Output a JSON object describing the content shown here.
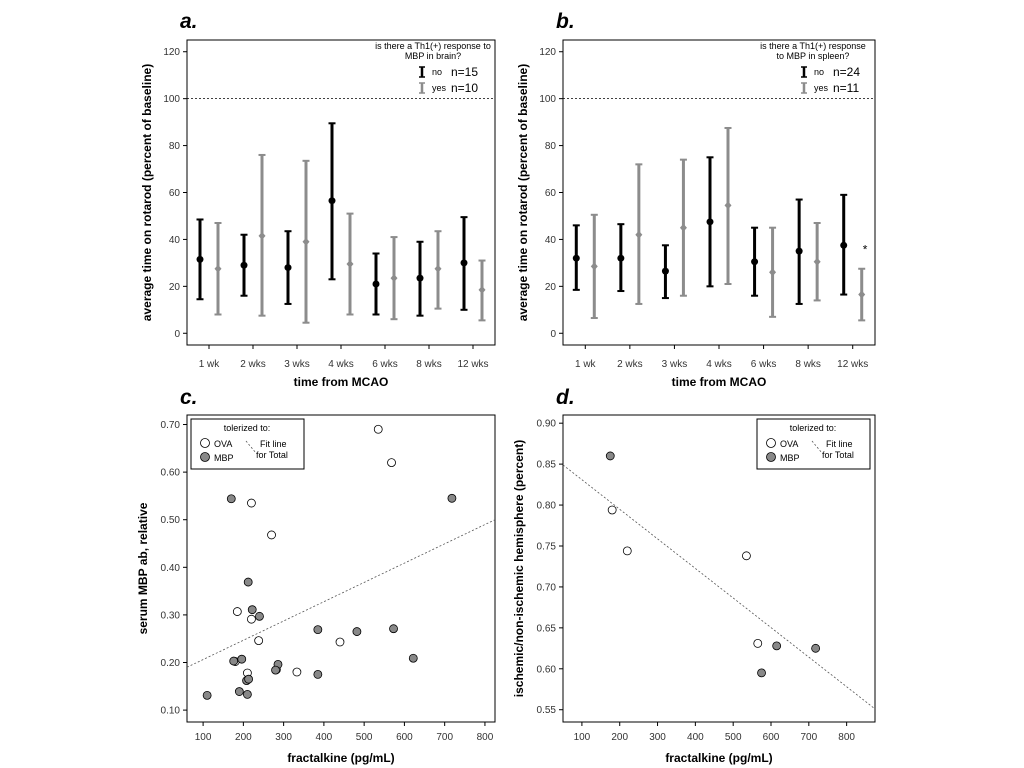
{
  "chart_data": [
    {
      "panel": "a.",
      "type": "errorbar",
      "categories": [
        "1 wk",
        "2 wks",
        "3 wks",
        "4 wks",
        "6 wks",
        "8 wks",
        "12 wks"
      ],
      "xlabel": "time from MCAO",
      "ylabel": "average time on rotarod (percent of baseline)",
      "ylim": [
        -5,
        125
      ],
      "yticks": [
        0,
        20,
        40,
        60,
        80,
        100,
        120
      ],
      "reference_line": 100,
      "legend": {
        "title": "is there a Th1(+) response to MBP in brain?",
        "position": "top-right"
      },
      "series": [
        {
          "name": "no",
          "n_label": "n=15",
          "color": "#000000",
          "mean": [
            31.5,
            29,
            28,
            56.5,
            21,
            23.5,
            30
          ],
          "low": [
            14.5,
            16,
            12.5,
            23,
            8,
            7.5,
            10
          ],
          "high": [
            48.5,
            42,
            43.5,
            89.5,
            34,
            39,
            49.5
          ]
        },
        {
          "name": "yes",
          "n_label": "n=10",
          "color": "#8c8c8c",
          "mean": [
            27.5,
            41.5,
            39,
            29.5,
            23.5,
            27.5,
            18.5
          ],
          "low": [
            8,
            7.5,
            4.5,
            8,
            6,
            10.5,
            5.5
          ],
          "high": [
            47,
            76,
            73.5,
            51,
            41,
            43.5,
            31
          ]
        }
      ]
    },
    {
      "panel": "b.",
      "type": "errorbar",
      "categories": [
        "1 wk",
        "2 wks",
        "3 wks",
        "4 wks",
        "6 wks",
        "8 wks",
        "12 wks"
      ],
      "xlabel": "time from MCAO",
      "ylabel": "average time on rotarod (percent of baseline)",
      "ylim": [
        -5,
        125
      ],
      "yticks": [
        0,
        20,
        40,
        60,
        80,
        100,
        120
      ],
      "reference_line": 100,
      "annotation": "*",
      "legend": {
        "title": "is there a Th1(+) response to MBP in spleen?",
        "position": "top-right"
      },
      "series": [
        {
          "name": "no",
          "n_label": "n=24",
          "color": "#000000",
          "mean": [
            32,
            32,
            26.5,
            47.5,
            30.5,
            35,
            37.5
          ],
          "low": [
            18.5,
            18,
            15,
            20,
            16,
            12.5,
            16.5
          ],
          "high": [
            46,
            46.5,
            37.5,
            75,
            45,
            57,
            59
          ]
        },
        {
          "name": "yes",
          "n_label": "n=11",
          "color": "#8c8c8c",
          "mean": [
            28.5,
            42,
            45,
            54.5,
            26,
            30.5,
            16.5
          ],
          "low": [
            6.5,
            12.5,
            16,
            21,
            7,
            14,
            5.5
          ],
          "high": [
            50.5,
            72,
            74,
            87.5,
            45,
            47,
            27.5
          ]
        }
      ]
    },
    {
      "panel": "c.",
      "type": "scatter",
      "xlabel": "fractalkine (pg/mL)",
      "ylabel": "serum MBP ab, relative",
      "xlim": [
        60,
        825
      ],
      "ylim": [
        0.075,
        0.72
      ],
      "xticks": [
        100,
        200,
        300,
        400,
        500,
        600,
        700,
        800
      ],
      "yticks": [
        "0.10",
        "0.20",
        "0.30",
        "0.40",
        "0.50",
        "0.60",
        "0.70"
      ],
      "legend": {
        "title": "tolerized to:",
        "entries": [
          "OVA",
          "MBP"
        ],
        "fitline_label": [
          "Fit line",
          "for Total"
        ],
        "position": "top-left"
      },
      "fit_line": {
        "x": [
          60,
          825
        ],
        "y": [
          0.19,
          0.5
        ]
      },
      "series": [
        {
          "name": "OVA",
          "fill": "#ffffff",
          "points": [
            [
              535,
              0.69
            ],
            [
              568,
              0.62
            ],
            [
              220,
              0.535
            ],
            [
              270,
              0.468
            ],
            [
              185,
              0.307
            ],
            [
              220,
              0.291
            ],
            [
              238,
              0.246
            ],
            [
              440,
              0.243
            ],
            [
              282,
              0.185
            ],
            [
              333,
              0.18
            ],
            [
              210,
              0.178
            ],
            [
              180,
              0.202
            ]
          ]
        },
        {
          "name": "MBP",
          "fill": "#888888",
          "points": [
            [
              170,
              0.544
            ],
            [
              718,
              0.545
            ],
            [
              212,
              0.369
            ],
            [
              222,
              0.311
            ],
            [
              240,
              0.297
            ],
            [
              385,
              0.269
            ],
            [
              482,
              0.265
            ],
            [
              573,
              0.271
            ],
            [
              622,
              0.209
            ],
            [
              196,
              0.207
            ],
            [
              176,
              0.203
            ],
            [
              286,
              0.196
            ],
            [
              280,
              0.184
            ],
            [
              385,
              0.175
            ],
            [
              208,
              0.162
            ],
            [
              213,
              0.165
            ],
            [
              190,
              0.139
            ],
            [
              210,
              0.133
            ],
            [
              110,
              0.131
            ]
          ]
        }
      ]
    },
    {
      "panel": "d.",
      "type": "scatter",
      "xlabel": "fractalkine (pg/mL)",
      "ylabel": "ischemic/non-ischemic hemisphere (percent)",
      "xlim": [
        50,
        875
      ],
      "ylim": [
        0.535,
        0.91
      ],
      "xticks": [
        100,
        200,
        300,
        400,
        500,
        600,
        700,
        800
      ],
      "yticks": [
        "0.55",
        "0.60",
        "0.65",
        "0.70",
        "0.75",
        "0.80",
        "0.85",
        "0.90"
      ],
      "legend": {
        "title": "tolerized to:",
        "entries": [
          "OVA",
          "MBP"
        ],
        "fitline_label": [
          "Fit line",
          "for Total"
        ],
        "position": "top-right"
      },
      "fit_line": {
        "x": [
          50,
          875
        ],
        "y": [
          0.849,
          0.551
        ]
      },
      "series": [
        {
          "name": "OVA",
          "fill": "#ffffff",
          "points": [
            [
              180,
              0.794
            ],
            [
              220,
              0.744
            ],
            [
              535,
              0.738
            ],
            [
              565,
              0.631
            ]
          ]
        },
        {
          "name": "MBP",
          "fill": "#888888",
          "points": [
            [
              175,
              0.86
            ],
            [
              615,
              0.628
            ],
            [
              718,
              0.625
            ],
            [
              575,
              0.595
            ]
          ]
        }
      ]
    }
  ],
  "colors": {
    "axis": "#000000",
    "black_series": "#000000",
    "gray_series": "#8c8c8c",
    "mbp_fill": "#888888",
    "ova_fill": "#ffffff"
  }
}
